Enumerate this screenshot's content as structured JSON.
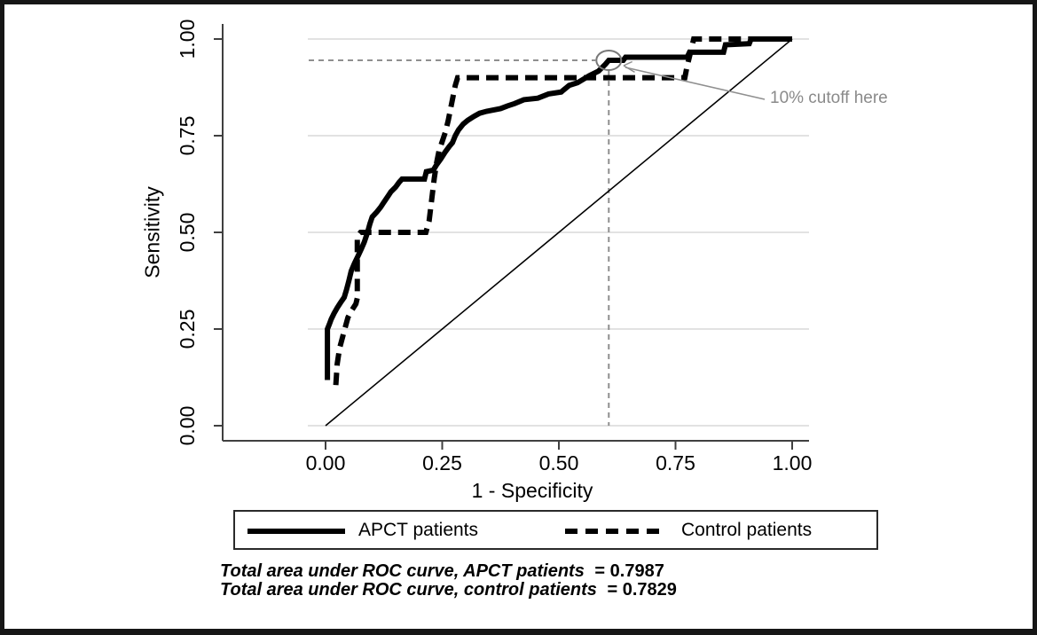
{
  "axes": {
    "x_title": "1 - Specificity",
    "y_title": "Sensitivity"
  },
  "annotation": {
    "text": "10% cutoff here"
  },
  "legend": {
    "items": [
      {
        "label": "APCT patients",
        "style": "solid"
      },
      {
        "label": "Control patients",
        "style": "dashed"
      }
    ]
  },
  "footer": {
    "lines": [
      {
        "label": "Total area under ROC curve, APCT patients",
        "eq_value": "=  0.7987"
      },
      {
        "label": "Total area under ROC curve, control patients",
        "eq_value": "=  0.7829"
      }
    ]
  },
  "colors": {
    "curve": "#000000",
    "grid": "#d8d8d8",
    "axis": "#404040",
    "tick_text": "#000000",
    "annotation": "#8a8a8a",
    "cutoff_line": "#8f8f8f",
    "circle": "#787878",
    "background": "#ffffff",
    "frame": "#161616"
  },
  "chart_data": {
    "type": "line",
    "title": "",
    "xlabel": "1 - Specificity",
    "ylabel": "Sensitivity",
    "xlim": [
      0,
      1
    ],
    "ylim": [
      0,
      1
    ],
    "grid": "horizontal",
    "x_ticks": [
      0,
      0.25,
      0.5,
      0.75,
      1
    ],
    "x_tick_labels": [
      "0.00",
      "0.25",
      "0.50",
      "0.75",
      "1.00"
    ],
    "y_ticks": [
      0,
      0.25,
      0.5,
      0.75,
      1
    ],
    "y_tick_labels": [
      "0.00",
      "0.25",
      "0.50",
      "0.75",
      "1.00"
    ],
    "series": [
      {
        "name": "APCT patients",
        "style": "solid",
        "auc": 0.7987,
        "points": [
          [
            0.004,
            0.118
          ],
          [
            0.004,
            0.25
          ],
          [
            0.008,
            0.262
          ],
          [
            0.012,
            0.275
          ],
          [
            0.018,
            0.29
          ],
          [
            0.025,
            0.305
          ],
          [
            0.032,
            0.318
          ],
          [
            0.04,
            0.332
          ],
          [
            0.045,
            0.352
          ],
          [
            0.05,
            0.375
          ],
          [
            0.055,
            0.4
          ],
          [
            0.062,
            0.42
          ],
          [
            0.07,
            0.44
          ],
          [
            0.077,
            0.458
          ],
          [
            0.083,
            0.475
          ],
          [
            0.09,
            0.5
          ],
          [
            0.095,
            0.522
          ],
          [
            0.1,
            0.54
          ],
          [
            0.11,
            0.553
          ],
          [
            0.118,
            0.565
          ],
          [
            0.125,
            0.578
          ],
          [
            0.133,
            0.592
          ],
          [
            0.14,
            0.605
          ],
          [
            0.15,
            0.617
          ],
          [
            0.158,
            0.63
          ],
          [
            0.164,
            0.638
          ],
          [
            0.212,
            0.638
          ],
          [
            0.216,
            0.657
          ],
          [
            0.231,
            0.661
          ],
          [
            0.238,
            0.675
          ],
          [
            0.247,
            0.69
          ],
          [
            0.256,
            0.707
          ],
          [
            0.265,
            0.722
          ],
          [
            0.272,
            0.732
          ],
          [
            0.278,
            0.75
          ],
          [
            0.285,
            0.765
          ],
          [
            0.295,
            0.78
          ],
          [
            0.305,
            0.79
          ],
          [
            0.318,
            0.8
          ],
          [
            0.33,
            0.808
          ],
          [
            0.345,
            0.813
          ],
          [
            0.375,
            0.82
          ],
          [
            0.39,
            0.827
          ],
          [
            0.405,
            0.833
          ],
          [
            0.425,
            0.843
          ],
          [
            0.455,
            0.847
          ],
          [
            0.478,
            0.858
          ],
          [
            0.505,
            0.863
          ],
          [
            0.522,
            0.88
          ],
          [
            0.54,
            0.887
          ],
          [
            0.565,
            0.905
          ],
          [
            0.585,
            0.917
          ],
          [
            0.6,
            0.935
          ],
          [
            0.607,
            0.945
          ],
          [
            0.638,
            0.945
          ],
          [
            0.643,
            0.953
          ],
          [
            0.775,
            0.953
          ],
          [
            0.78,
            0.966
          ],
          [
            0.853,
            0.966
          ],
          [
            0.857,
            0.985
          ],
          [
            0.908,
            0.988
          ],
          [
            0.912,
            1
          ],
          [
            1,
            1
          ]
        ]
      },
      {
        "name": "Control patients",
        "style": "dashed",
        "auc": 0.7829,
        "points": [
          [
            0.022,
            0.105
          ],
          [
            0.025,
            0.16
          ],
          [
            0.03,
            0.2
          ],
          [
            0.04,
            0.245
          ],
          [
            0.048,
            0.28
          ],
          [
            0.057,
            0.3
          ],
          [
            0.065,
            0.315
          ],
          [
            0.068,
            0.33
          ],
          [
            0.068,
            0.49
          ],
          [
            0.075,
            0.5
          ],
          [
            0.215,
            0.5
          ],
          [
            0.222,
            0.53
          ],
          [
            0.226,
            0.57
          ],
          [
            0.229,
            0.6
          ],
          [
            0.233,
            0.64
          ],
          [
            0.238,
            0.68
          ],
          [
            0.243,
            0.71
          ],
          [
            0.25,
            0.735
          ],
          [
            0.257,
            0.76
          ],
          [
            0.263,
            0.79
          ],
          [
            0.268,
            0.82
          ],
          [
            0.273,
            0.85
          ],
          [
            0.278,
            0.88
          ],
          [
            0.283,
            0.9
          ],
          [
            0.77,
            0.9
          ],
          [
            0.774,
            0.925
          ],
          [
            0.779,
            0.95
          ],
          [
            0.784,
            0.975
          ],
          [
            0.789,
            1
          ],
          [
            1,
            1
          ]
        ]
      }
    ],
    "reference_line": {
      "from": [
        0,
        0
      ],
      "to": [
        1,
        1
      ]
    },
    "cutoff": {
      "label": "10% cutoff here",
      "x": 0.607,
      "y": 0.945
    },
    "auc_notes": [
      "Total area under ROC curve, APCT patients = 0.7987",
      "Total area under ROC curve, control patients = 0.7829"
    ],
    "legend_position": "bottom"
  }
}
